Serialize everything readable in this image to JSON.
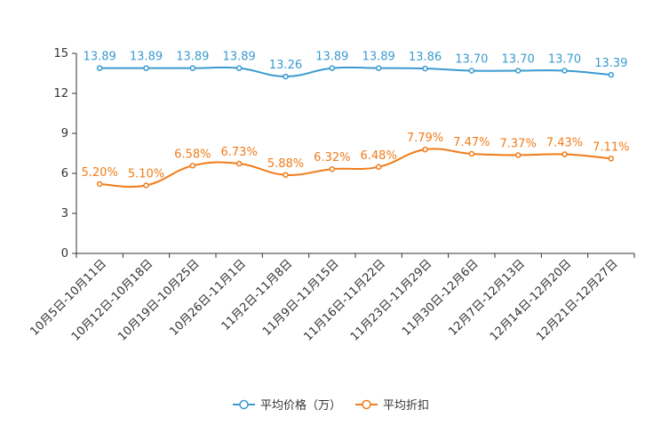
{
  "chart_data": {
    "type": "line",
    "categories": [
      "10月5日-10月11日",
      "10月12日-10月18日",
      "10月19日-10月25日",
      "10月26日-11月1日",
      "11月2日-11月8日",
      "11月9日-11月15日",
      "11月16日-11月22日",
      "11月23日-11月29日",
      "11月30日-12月6日",
      "12月7日-12月13日",
      "12月14日-12月20日",
      "12月21日-12月27日"
    ],
    "series": [
      {
        "name": "平均价格（万）",
        "color": "#3a9bd0",
        "values": [
          13.89,
          13.89,
          13.89,
          13.89,
          13.26,
          13.89,
          13.89,
          13.86,
          13.7,
          13.7,
          13.7,
          13.39
        ],
        "labels": [
          "13.89",
          "13.89",
          "13.89",
          "13.89",
          "13.26",
          "13.89",
          "13.89",
          "13.86",
          "13.70",
          "13.70",
          "13.70",
          "13.39"
        ]
      },
      {
        "name": "平均折扣",
        "color": "#f07c1a",
        "values": [
          5.2,
          5.1,
          6.58,
          6.73,
          5.88,
          6.32,
          6.48,
          7.79,
          7.47,
          7.37,
          7.43,
          7.11
        ],
        "labels": [
          "5.20%",
          "5.10%",
          "6.58%",
          "6.73%",
          "5.88%",
          "6.32%",
          "6.48%",
          "7.79%",
          "7.47%",
          "7.37%",
          "7.43%",
          "7.11%"
        ]
      }
    ],
    "yticks": [
      "0",
      "3",
      "6",
      "9",
      "12",
      "15"
    ],
    "ylim": [
      0,
      15
    ],
    "title": "",
    "xlabel": "",
    "ylabel": "",
    "legend": "bottom-center"
  }
}
